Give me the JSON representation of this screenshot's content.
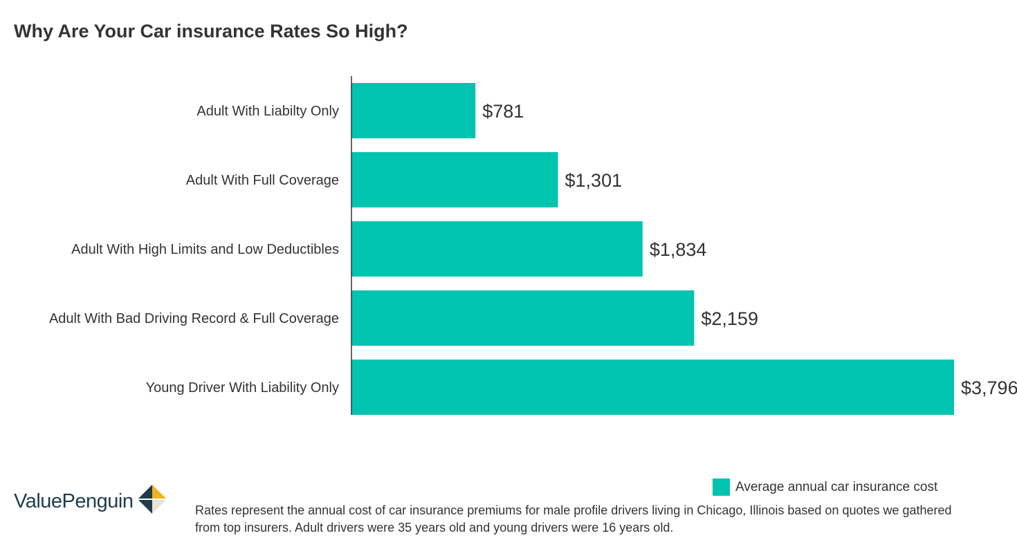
{
  "title": "Why Are Your Car insurance Rates So High?",
  "chart_data": {
    "type": "bar",
    "orientation": "horizontal",
    "title": "Why Are Your Car insurance Rates So High?",
    "categories": [
      "Adult With Liabilty Only",
      "Adult With Full Coverage",
      "Adult With High Limits and Low Deductibles",
      "Adult With Bad Driving Record & Full Coverage",
      "Young Driver With Liability Only"
    ],
    "series": [
      {
        "name": "Average annual car insurance cost",
        "values": [
          781,
          1301,
          1834,
          2159,
          3796
        ],
        "labels": [
          "$781",
          "$1,301",
          "$1,834",
          "$2,159",
          "$3,796"
        ],
        "color": "#00c4b0"
      }
    ],
    "xlim": [
      0,
      3796
    ],
    "grid": false,
    "legend_position": "bottom-right"
  },
  "legend": {
    "label": "Average annual car insurance cost",
    "color": "#00c4b0"
  },
  "logo": {
    "text": "ValuePenguin"
  },
  "footnote": "Rates represent the annual cost of car insurance premiums for male profile drivers living in Chicago, Illinois based on quotes we gathered from top insurers. Adult drivers were 35 years old and young drivers were 16 years old.",
  "colors": {
    "bar": "#00c4b0",
    "text": "#333333",
    "axis": "#333333",
    "logo_dark": "#1f3b4d",
    "logo_gold": "#f0b323"
  }
}
